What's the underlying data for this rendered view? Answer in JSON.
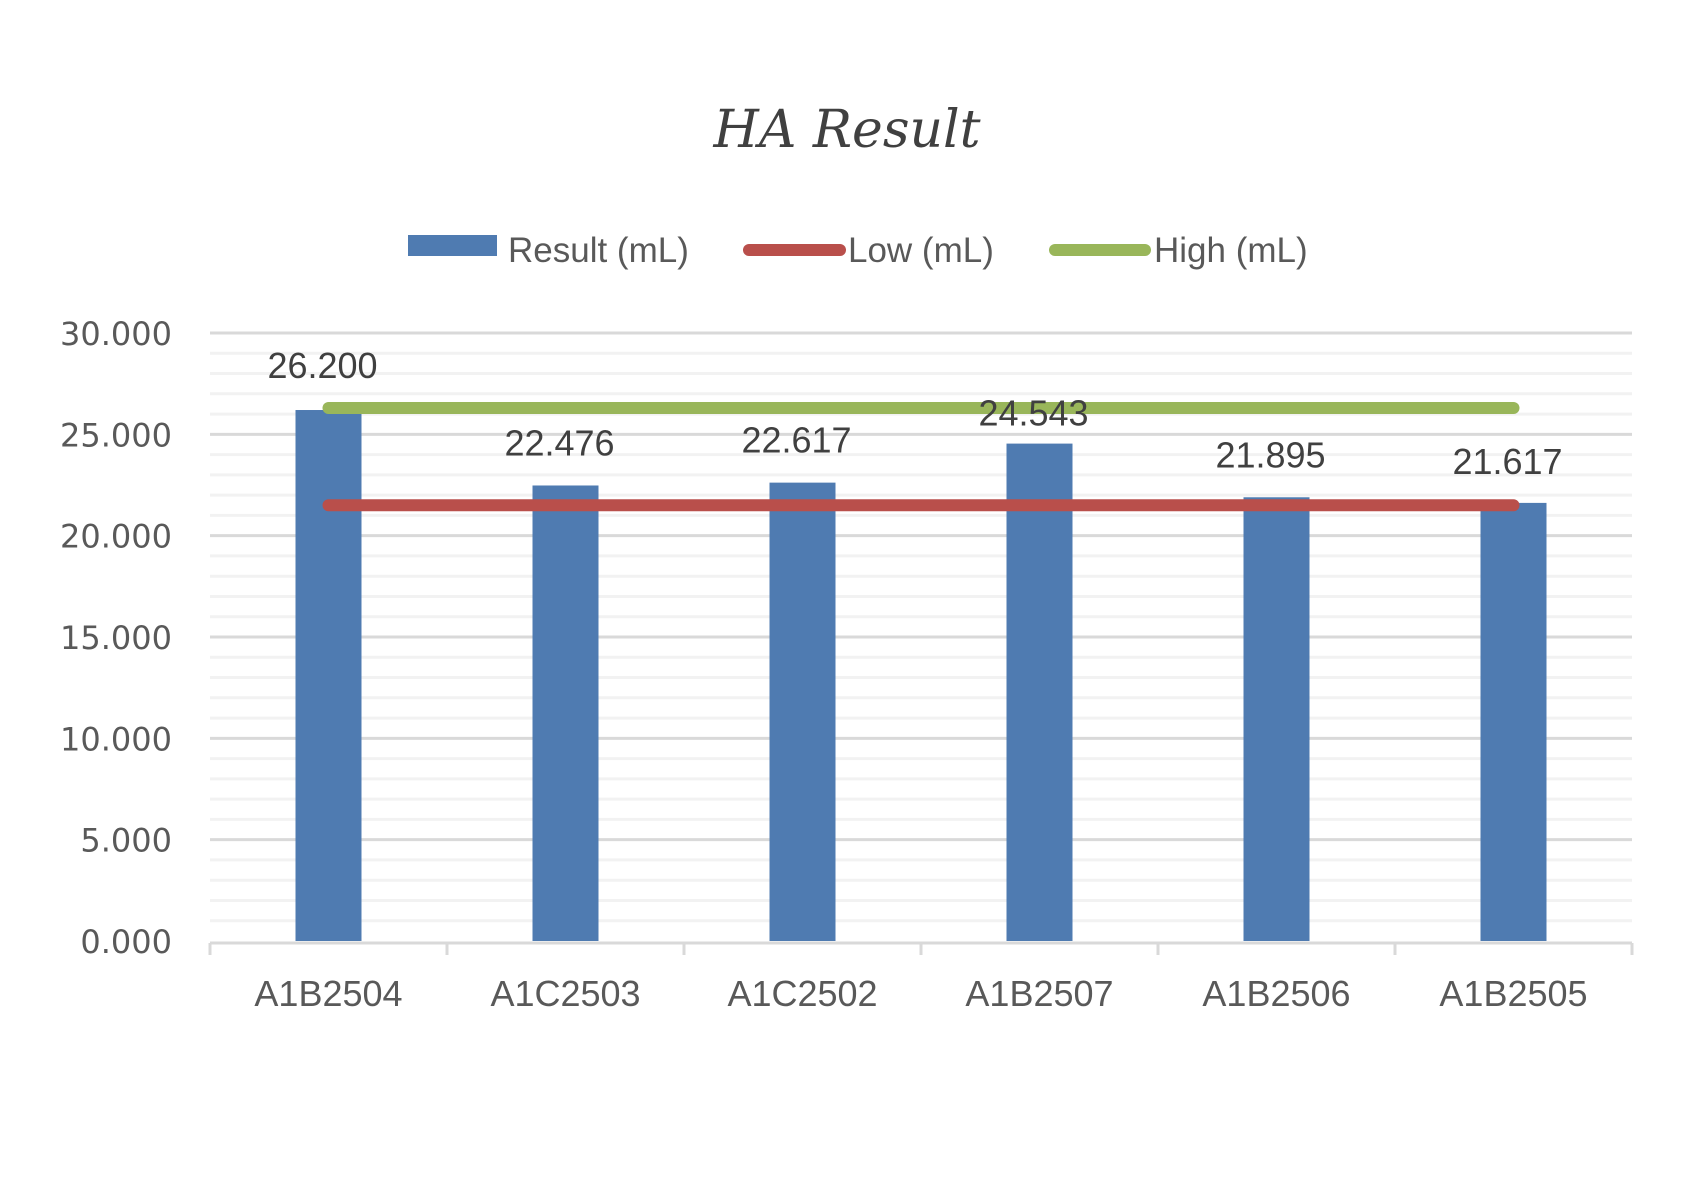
{
  "chart_data": {
    "type": "bar",
    "title": "HA Result",
    "xlabel": "",
    "ylabel": "",
    "categories": [
      "A1B2504",
      "A1C2503",
      "A1C2502",
      "A1B2507",
      "A1B2506",
      "A1B2505"
    ],
    "series": [
      {
        "name": "Result (mL)",
        "type": "bar",
        "color": "#4F7BB1",
        "values": [
          26.2,
          22.476,
          22.617,
          24.543,
          21.895,
          21.617
        ],
        "data_labels": [
          "26.200",
          "22.476",
          "22.617",
          "24.543",
          "21.895",
          "21.617"
        ]
      },
      {
        "name": "Low (mL)",
        "type": "line",
        "color": "#B94F4B",
        "values": [
          21.5,
          21.5,
          21.5,
          21.5,
          21.5,
          21.5
        ]
      },
      {
        "name": "High (mL)",
        "type": "line",
        "color": "#99B65A",
        "values": [
          26.3,
          26.3,
          26.3,
          26.3,
          26.3,
          26.3
        ]
      }
    ],
    "ylim": [
      0,
      30
    ],
    "yticks": [
      "0.000",
      "5.000",
      "10.000",
      "15.000",
      "20.000",
      "25.000",
      "30.000"
    ],
    "ytick_values": [
      0,
      5,
      10,
      15,
      20,
      25,
      30
    ],
    "grid": {
      "major": true,
      "minor": true,
      "minor_step": 1
    },
    "legend": {
      "position": "top",
      "entries": [
        "Result (mL)",
        "Low (mL)",
        "High (mL)"
      ]
    },
    "label_offsets": [
      32,
      30,
      30,
      18,
      30,
      29
    ]
  }
}
